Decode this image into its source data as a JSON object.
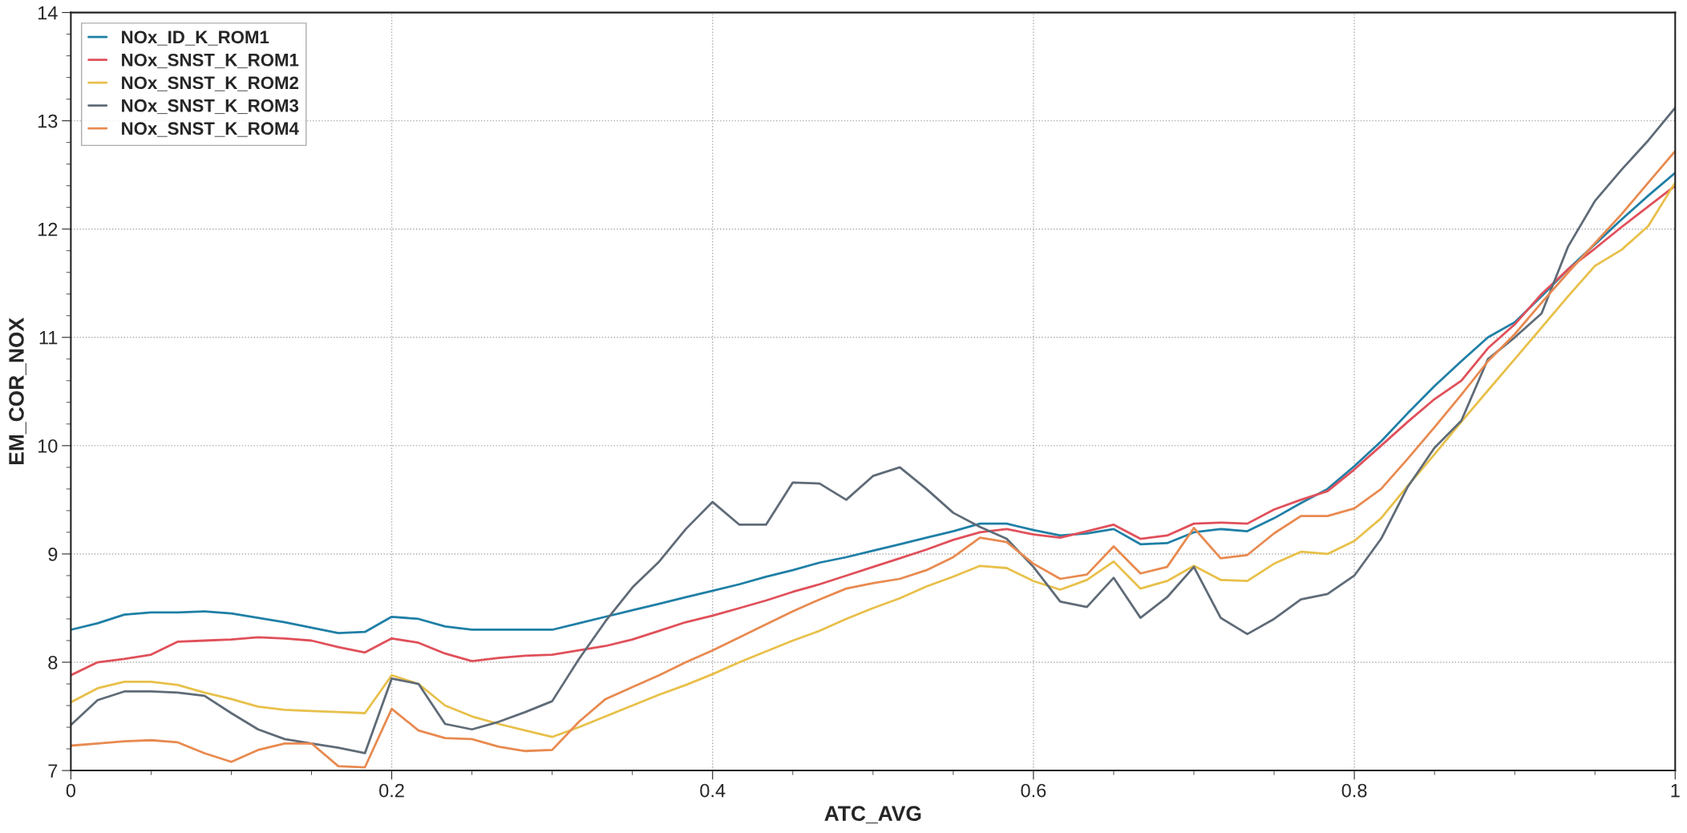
{
  "chart_data": {
    "type": "line",
    "xlabel": "ATC_AVG",
    "ylabel": "EM_COR_NOX",
    "x": [
      0,
      0.0167,
      0.0333,
      0.05,
      0.0667,
      0.0833,
      0.1,
      0.1167,
      0.1333,
      0.15,
      0.1667,
      0.1833,
      0.2,
      0.2167,
      0.2333,
      0.25,
      0.2667,
      0.2833,
      0.3,
      0.3167,
      0.3333,
      0.35,
      0.3667,
      0.3833,
      0.4,
      0.4167,
      0.4333,
      0.45,
      0.4667,
      0.4833,
      0.5,
      0.5167,
      0.5333,
      0.55,
      0.5667,
      0.5833,
      0.6,
      0.6167,
      0.6333,
      0.65,
      0.6667,
      0.6833,
      0.7,
      0.7167,
      0.7333,
      0.75,
      0.7667,
      0.7833,
      0.8,
      0.8167,
      0.8333,
      0.85,
      0.8667,
      0.8833,
      0.9,
      0.9167,
      0.9333,
      0.95,
      0.9667,
      0.9833,
      1
    ],
    "series": [
      {
        "name": "NOx_ID_K_ROM1",
        "color": "#1f7fa6",
        "values": [
          8.3,
          8.36,
          8.44,
          8.46,
          8.46,
          8.47,
          8.45,
          8.41,
          8.37,
          8.32,
          8.27,
          8.28,
          8.42,
          8.4,
          8.33,
          8.3,
          8.3,
          8.3,
          8.3,
          8.36,
          8.42,
          8.48,
          8.54,
          8.6,
          8.66,
          8.72,
          8.79,
          8.85,
          8.92,
          8.97,
          9.03,
          9.09,
          9.15,
          9.21,
          9.28,
          9.28,
          9.22,
          9.17,
          9.19,
          9.23,
          9.09,
          9.1,
          9.2,
          9.23,
          9.21,
          9.33,
          9.47,
          9.6,
          9.81,
          10.04,
          10.3,
          10.55,
          10.78,
          11.0,
          11.14,
          11.38,
          11.63,
          11.86,
          12.09,
          12.31,
          12.52
        ]
      },
      {
        "name": "NOx_SNST_K_ROM1",
        "color": "#e0505a",
        "values": [
          7.88,
          8.0,
          8.03,
          8.07,
          8.19,
          8.2,
          8.21,
          8.23,
          8.22,
          8.2,
          8.14,
          8.09,
          8.22,
          8.18,
          8.08,
          8.01,
          8.04,
          8.06,
          8.07,
          8.11,
          8.15,
          8.21,
          8.29,
          8.37,
          8.43,
          8.5,
          8.57,
          8.65,
          8.72,
          8.8,
          8.88,
          8.96,
          9.04,
          9.13,
          9.2,
          9.23,
          9.18,
          9.15,
          9.21,
          9.27,
          9.14,
          9.17,
          9.28,
          9.29,
          9.28,
          9.41,
          9.5,
          9.58,
          9.78,
          10.0,
          10.22,
          10.43,
          10.6,
          10.9,
          11.12,
          11.4,
          11.63,
          11.82,
          12.02,
          12.21,
          12.4
        ]
      },
      {
        "name": "NOx_SNST_K_ROM2",
        "color": "#e8c04a",
        "values": [
          7.63,
          7.76,
          7.82,
          7.82,
          7.79,
          7.72,
          7.66,
          7.59,
          7.56,
          7.55,
          7.54,
          7.53,
          7.88,
          7.8,
          7.6,
          7.5,
          7.43,
          7.37,
          7.31,
          7.4,
          7.5,
          7.6,
          7.7,
          7.79,
          7.89,
          8.0,
          8.1,
          8.2,
          8.29,
          8.4,
          8.5,
          8.59,
          8.7,
          8.79,
          8.89,
          8.87,
          8.75,
          8.67,
          8.76,
          8.93,
          8.68,
          8.75,
          8.89,
          8.76,
          8.75,
          8.91,
          9.02,
          9.0,
          9.12,
          9.33,
          9.63,
          9.92,
          10.22,
          10.51,
          10.8,
          11.09,
          11.38,
          11.66,
          11.81,
          12.03,
          12.43
        ]
      },
      {
        "name": "NOx_SNST_K_ROM3",
        "color": "#5f6b77",
        "values": [
          7.42,
          7.65,
          7.73,
          7.73,
          7.72,
          7.69,
          7.53,
          7.38,
          7.29,
          7.25,
          7.21,
          7.16,
          7.85,
          7.8,
          7.43,
          7.38,
          7.45,
          7.54,
          7.64,
          8.03,
          8.38,
          8.69,
          8.93,
          9.23,
          9.48,
          9.27,
          9.27,
          9.66,
          9.65,
          9.5,
          9.72,
          9.8,
          9.6,
          9.38,
          9.25,
          9.14,
          8.88,
          8.56,
          8.51,
          8.78,
          8.41,
          8.6,
          8.88,
          8.41,
          8.26,
          8.4,
          8.58,
          8.63,
          8.8,
          9.14,
          9.62,
          9.98,
          10.23,
          10.8,
          11.0,
          11.22,
          11.84,
          12.26,
          12.55,
          12.82,
          13.12
        ]
      },
      {
        "name": "NOx_SNST_K_ROM4",
        "color": "#e88a50",
        "values": [
          7.23,
          7.25,
          7.27,
          7.28,
          7.26,
          7.16,
          7.08,
          7.19,
          7.25,
          7.25,
          7.04,
          7.03,
          7.57,
          7.37,
          7.3,
          7.29,
          7.22,
          7.18,
          7.19,
          7.45,
          7.66,
          7.77,
          7.88,
          8.0,
          8.11,
          8.23,
          8.35,
          8.47,
          8.58,
          8.68,
          8.73,
          8.77,
          8.85,
          8.97,
          9.15,
          9.11,
          8.91,
          8.77,
          8.81,
          9.07,
          8.82,
          8.88,
          9.24,
          8.96,
          8.99,
          9.19,
          9.35,
          9.35,
          9.42,
          9.6,
          9.88,
          10.17,
          10.47,
          10.78,
          11.03,
          11.32,
          11.6,
          11.87,
          12.14,
          12.43,
          12.72
        ]
      }
    ],
    "xlim": [
      0,
      1
    ],
    "ylim": [
      7,
      14
    ],
    "xticks": [
      0,
      0.2,
      0.4,
      0.6,
      0.8,
      1
    ],
    "yticks": [
      7,
      8,
      9,
      10,
      11,
      12,
      13,
      14
    ],
    "grid": true,
    "legend": "top left",
    "marker": "none",
    "line_style": "solid"
  }
}
